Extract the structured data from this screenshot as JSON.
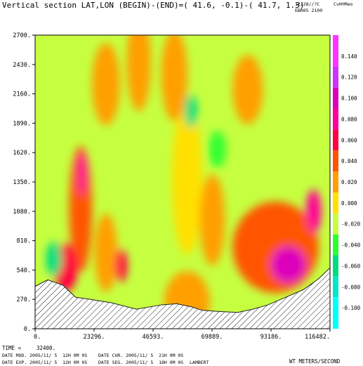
{
  "chart_data": {
    "type": "heatmap",
    "title": "Vertical section LAT,LON (BEGIN)-(END)=( 41.6, -0.1)-( 41.7,  1.3)",
    "top_right": [
      "12/28//?C",
      "EBR05 2100"
    ],
    "corner_tag": "CvH®Meo",
    "y_ticks": [
      "0.",
      "270.",
      "540.",
      "810.",
      "1080.",
      "1350.",
      "1620.",
      "1890.",
      "2160.",
      "2430.",
      "2700."
    ],
    "y_values": [
      0,
      270,
      540,
      810,
      1080,
      1350,
      1620,
      1890,
      2160,
      2430,
      2700
    ],
    "ylim": [
      0,
      2700
    ],
    "x_ticks": [
      "0.",
      "23296.",
      "46593.",
      "69889.",
      "93186.",
      "116482."
    ],
    "x_values": [
      0,
      23296,
      46593,
      69889,
      93186,
      116482
    ],
    "xlim": [
      0,
      116482
    ],
    "colorbar": {
      "labels": [
        "0.140",
        "0.120",
        "0.100",
        "0.080",
        "0.060",
        "0.040",
        "0.020",
        "0.000",
        "-0.020",
        "-0.040",
        "-0.060",
        "-0.080",
        "-0.100"
      ],
      "values": [
        0.14,
        0.12,
        0.1,
        0.08,
        0.06,
        0.04,
        0.02,
        0.0,
        -0.02,
        -0.04,
        -0.06,
        -0.08,
        -0.1
      ],
      "colors": [
        "#ff33ff",
        "#cc33ff",
        "#dd00bb",
        "#ff0099",
        "#ff0040",
        "#ff5500",
        "#ff9f00",
        "#ffe000",
        "#c6ff40",
        "#30ff30",
        "#00dd80",
        "#00e8c8",
        "#00ffff"
      ],
      "range": [
        -0.12,
        0.16
      ]
    },
    "terrain": {
      "x": [
        0,
        5000,
        11000,
        16000,
        22000,
        30000,
        40000,
        50000,
        56000,
        62000,
        66000,
        72000,
        80000,
        86000,
        92000,
        100000,
        106000,
        112000,
        116482
      ],
      "y": [
        390,
        450,
        400,
        290,
        270,
        240,
        180,
        220,
        230,
        200,
        170,
        160,
        150,
        180,
        220,
        300,
        360,
        460,
        560
      ]
    },
    "features": [
      {
        "x": 18000,
        "y": 1100,
        "w": 4500,
        "h": 580,
        "value": 0.035
      },
      {
        "x": 18500,
        "y": 1420,
        "w": 1600,
        "h": 200,
        "value": 0.075
      },
      {
        "x": 12000,
        "y": 560,
        "w": 4800,
        "h": 220,
        "value": 0.065
      },
      {
        "x": 7500,
        "y": 640,
        "w": 3200,
        "h": 160,
        "value": -0.05
      },
      {
        "x": 28000,
        "y": 700,
        "w": 4500,
        "h": 360,
        "value": 0.03
      },
      {
        "x": 34000,
        "y": 580,
        "w": 2400,
        "h": 150,
        "value": 0.065
      },
      {
        "x": 60000,
        "y": 1380,
        "w": 6000,
        "h": 700,
        "value": -0.01
      },
      {
        "x": 61500,
        "y": 2000,
        "w": 2500,
        "h": 150,
        "value": -0.05
      },
      {
        "x": 72000,
        "y": 1650,
        "w": 3500,
        "h": 170,
        "value": -0.04
      },
      {
        "x": 95000,
        "y": 750,
        "w": 17000,
        "h": 420,
        "value": 0.045
      },
      {
        "x": 100000,
        "y": 590,
        "w": 7000,
        "h": 170,
        "value": 0.095
      },
      {
        "x": 110000,
        "y": 1080,
        "w": 3000,
        "h": 200,
        "value": 0.075
      },
      {
        "x": 41000,
        "y": 2450,
        "w": 4800,
        "h": 450,
        "value": 0.03
      },
      {
        "x": 55000,
        "y": 2330,
        "w": 5200,
        "h": 420,
        "value": 0.03
      },
      {
        "x": 84000,
        "y": 2200,
        "w": 6000,
        "h": 320,
        "value": 0.02
      },
      {
        "x": 28000,
        "y": 2250,
        "w": 5500,
        "h": 380,
        "value": 0.02
      },
      {
        "x": 60000,
        "y": 250,
        "w": 9000,
        "h": 280,
        "value": 0.025
      },
      {
        "x": 70000,
        "y": 1000,
        "w": 5000,
        "h": 420,
        "value": 0.03
      }
    ],
    "base_value": -0.02,
    "x_unit_label": "",
    "y_unit_label": ""
  },
  "footer": {
    "time_label": "TIME =",
    "time_value": "32400.",
    "date_mod": "DATE MOD. 2005/11/ 5  12H 0M 0S",
    "date_cur": "DATE CUR. 2005/11/ 5  21H 0M 0S",
    "date_exp": "DATE EXP. 2005/11/ 5  12H 0M 0S",
    "date_seg": "DATE SEG. 2005/11/ 5  18H 0M 0S",
    "projection": "LAMBERT",
    "field": "WT METERS/SECOND"
  }
}
